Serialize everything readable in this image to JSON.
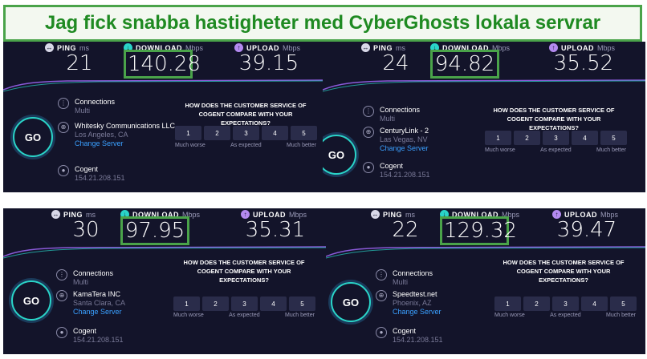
{
  "banner": {
    "title": "Jag fick snabba hastigheter med CyberGhosts lokala servrar"
  },
  "labels": {
    "ping": "PING",
    "ping_unit": "ms",
    "download": "DOWNLOAD",
    "download_unit": "Mbps",
    "upload": "UPLOAD",
    "upload_unit": "Mbps",
    "go": "GO",
    "connections": "Connections",
    "multi": "Multi",
    "change_server": "Change Server",
    "question": "HOW DOES THE CUSTOMER SERVICE OF COGENT COMPARE WITH YOUR EXPECTATIONS?",
    "rating": [
      "1",
      "2",
      "3",
      "4",
      "5"
    ],
    "much_worse": "Much worse",
    "as_expected": "As expected",
    "much_better": "Much better"
  },
  "panels": [
    {
      "ping": "21",
      "download": "140.28",
      "upload": "39.15",
      "provider": "Whitesky Communications LLC",
      "location": "Los Angeles, CA",
      "isp": "Cogent",
      "ip": "154.21.208.151"
    },
    {
      "ping": "24",
      "download": "94.82",
      "upload": "35.52",
      "provider": "CenturyLink - 2",
      "location": "Las Vegas, NV",
      "isp": "Cogent",
      "ip": "154.21.208.151"
    },
    {
      "ping": "30",
      "download": "97.95",
      "upload": "35.31",
      "provider": "KamaTera INC",
      "location": "Santa Clara, CA",
      "isp": "Cogent",
      "ip": "154.21.208.151"
    },
    {
      "ping": "22",
      "download": "129.32",
      "upload": "39.47",
      "provider": "Speedtest.net",
      "location": "Phoenix, AZ",
      "isp": "Cogent",
      "ip": "154.21.208.151"
    }
  ],
  "colors": {
    "highlight": "#4aa34a",
    "panel_bg": "#13142a",
    "download_accent": "#2ad4c8",
    "upload_accent": "#b48af0"
  }
}
